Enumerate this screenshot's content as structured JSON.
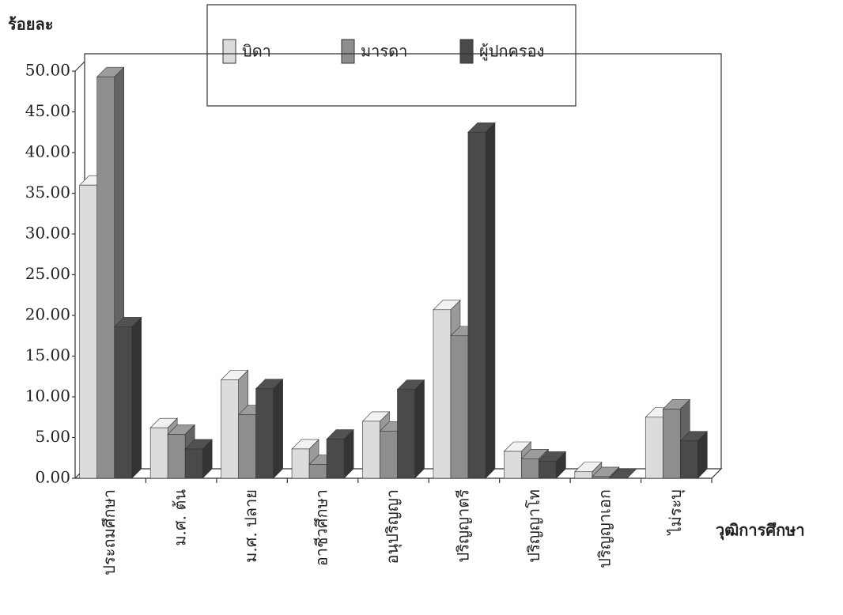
{
  "chart_data": {
    "type": "bar3d",
    "y_label": "ร้อยละ",
    "x_label": "วุฒิการศึกษา",
    "categories": [
      "ประถมศึกษา",
      "ม.ศ. ต้น",
      "ม.ศ. ปลาย",
      "อาชีวศึกษา",
      "อนุปริญญา",
      "ปริญญาตรี",
      "ปริญญาโท",
      "ปริญญาเอก",
      "ไม่ระบุ"
    ],
    "series": [
      {
        "name": "บิดา",
        "color": "#dcdcdc",
        "values": [
          36,
          6.2,
          12.1,
          3.6,
          7,
          20.7,
          3.3,
          0.8,
          7.5
        ]
      },
      {
        "name": "มารดา",
        "color": "#8e8e8e",
        "values": [
          49.3,
          5.4,
          7.8,
          1.7,
          5.8,
          17.5,
          2.4,
          0.2,
          8.5
        ]
      },
      {
        "name": "ผู้ปกครอง",
        "color": "#4a4a4a",
        "values": [
          18.6,
          3.6,
          11,
          4.8,
          10.9,
          42.5,
          2.1,
          0,
          4.6
        ]
      }
    ],
    "ylim": [
      0,
      50
    ],
    "yticks": [
      {
        "value": 0,
        "label": "0.00"
      },
      {
        "value": 5,
        "label": "5.00"
      },
      {
        "value": 10,
        "label": "10.00"
      },
      {
        "value": 15,
        "label": "15.00"
      },
      {
        "value": 20,
        "label": "20.00"
      },
      {
        "value": 25,
        "label": "25.00"
      },
      {
        "value": 30,
        "label": "30.00"
      },
      {
        "value": 35,
        "label": "35.00"
      },
      {
        "value": 40,
        "label": "40.00"
      },
      {
        "value": 45,
        "label": "45.00"
      },
      {
        "value": 50,
        "label": "50.00"
      }
    ],
    "grid": false
  }
}
